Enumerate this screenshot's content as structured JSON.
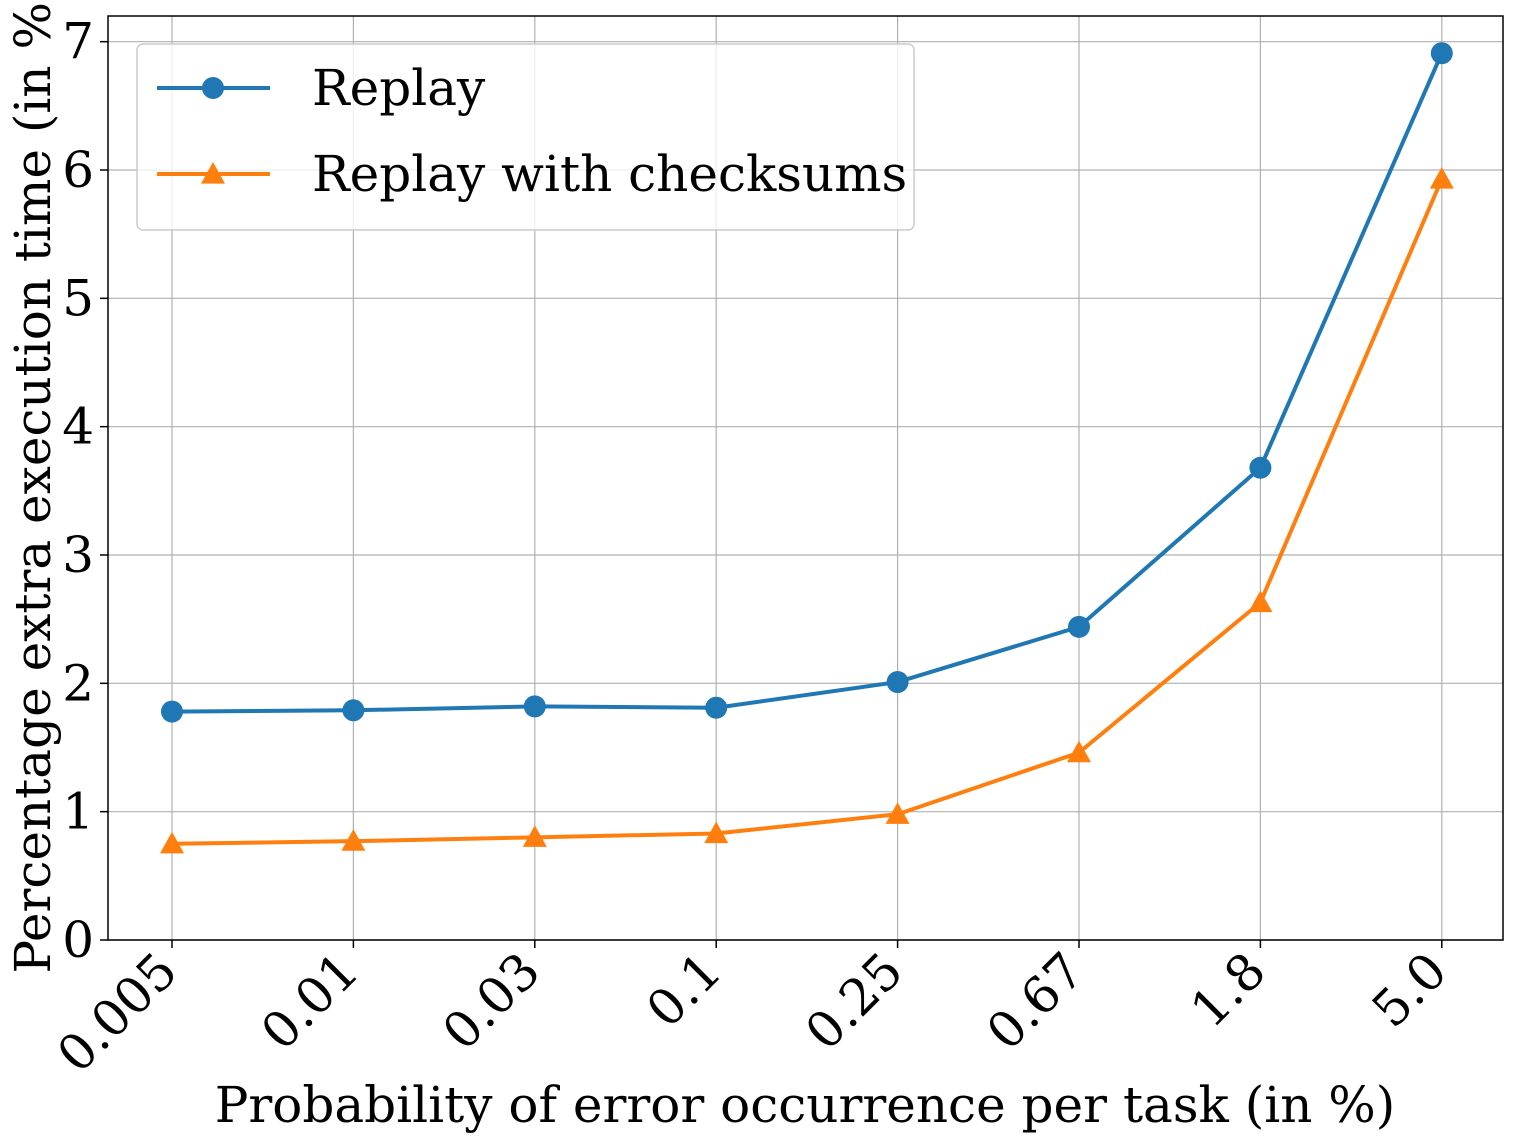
{
  "chart_data": {
    "type": "line",
    "xlabel": "Probability of error occurrence per task (in %)",
    "ylabel": "Percentage extra execution time (in %)",
    "categories": [
      "0.005",
      "0.01",
      "0.03",
      "0.1",
      "0.25",
      "0.67",
      "1.8",
      "5.0"
    ],
    "yticks": [
      "0",
      "1",
      "2",
      "3",
      "4",
      "5",
      "6",
      "7"
    ],
    "ylim": [
      0,
      7.2
    ],
    "grid": true,
    "legend_position": "top-left",
    "series": [
      {
        "name": "Replay",
        "color": "#1f77b4",
        "marker": "circle",
        "values": [
          1.78,
          1.79,
          1.82,
          1.81,
          2.01,
          2.44,
          3.68,
          6.91
        ]
      },
      {
        "name": "Replay with checksums",
        "color": "#ff7f0e",
        "marker": "triangle",
        "values": [
          0.75,
          0.77,
          0.8,
          0.83,
          0.98,
          1.46,
          2.63,
          5.93
        ]
      }
    ]
  }
}
